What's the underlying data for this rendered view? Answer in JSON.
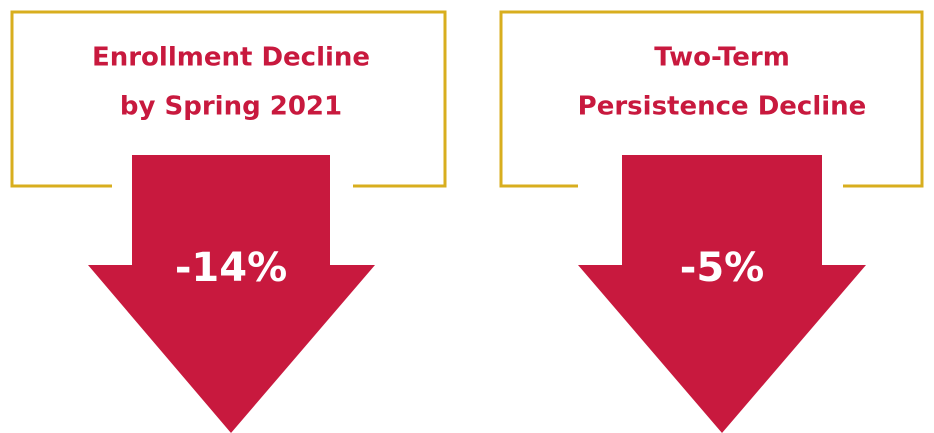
{
  "panels": [
    {
      "title": [
        "Enrollment Decline",
        "by Spring 2021"
      ],
      "value": "-14%"
    },
    {
      "title": [
        "Two-Term",
        "Persistence Decline"
      ],
      "value": "-5%"
    }
  ]
}
